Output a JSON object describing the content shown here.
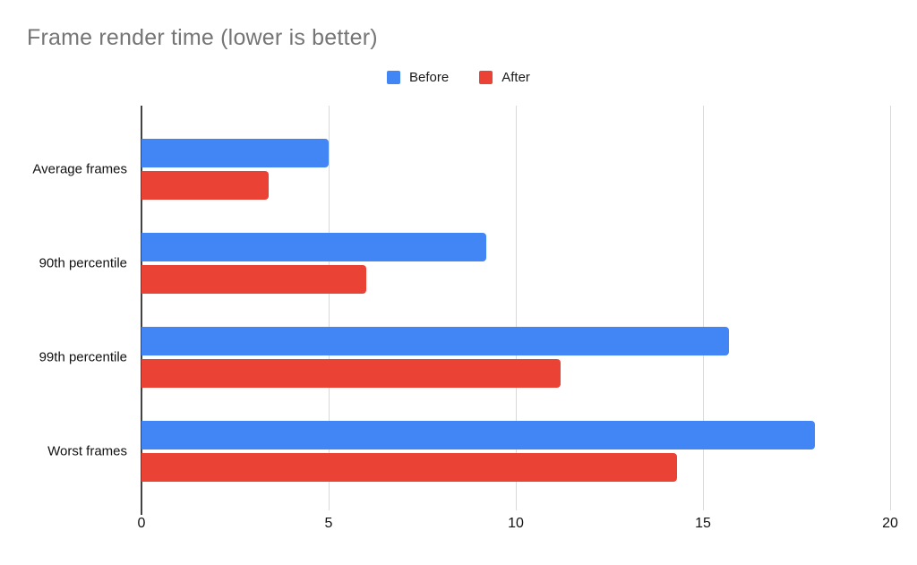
{
  "title": "Frame render time (lower is better)",
  "legend": {
    "before_label": "Before",
    "after_label": "After"
  },
  "colors": {
    "before": "#4285F4",
    "after": "#EA4335",
    "title_text": "#757575",
    "axis_line": "#424242",
    "gridline": "#d9d9d9",
    "label_text": "#111111"
  },
  "chart_data": {
    "type": "bar",
    "orientation": "horizontal",
    "title": "Frame render time (lower is better)",
    "categories": [
      "Average frames",
      "90th percentile",
      "99th percentile",
      "Worst frames"
    ],
    "series": [
      {
        "name": "Before",
        "color": "#4285F4",
        "values": [
          5.0,
          9.2,
          15.7,
          18.0
        ]
      },
      {
        "name": "After",
        "color": "#EA4335",
        "values": [
          3.4,
          6.0,
          11.2,
          14.3
        ]
      }
    ],
    "xlabel": "",
    "ylabel": "",
    "xlim": [
      0,
      20
    ],
    "x_ticks": [
      0,
      5,
      10,
      15,
      20
    ],
    "grid": true,
    "legend_position": "top"
  }
}
